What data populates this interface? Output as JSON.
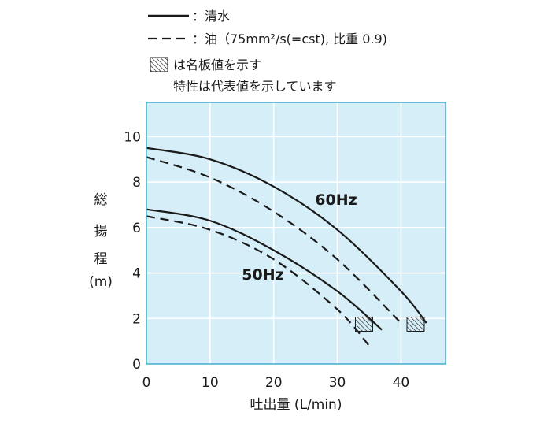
{
  "chart_data": {
    "type": "line",
    "xlabel": "吐出量 (L/min)",
    "ylabel": [
      "総",
      "揚",
      "程",
      "(m)"
    ],
    "xlim": [
      0,
      47
    ],
    "ylim": [
      0,
      11.5
    ],
    "x_ticks": [
      "0",
      "10",
      "20",
      "30",
      "40"
    ],
    "y_ticks": [
      "0",
      "2",
      "4",
      "6",
      "8",
      "10"
    ],
    "grid": true,
    "background_color": "#d6eef7",
    "frame_color": "#4db3cc",
    "grid_color": "#ffffff",
    "line_color": "#1a1a1a",
    "legend": {
      "solid": "：清水",
      "dashed": "：油（75mm²/s(=cst), 比重 0.9)",
      "hatch": "は名板値を示す",
      "note": "特性は代表値を示しています"
    },
    "series": [
      {
        "name": "60Hz",
        "style": "solid",
        "x": [
          0,
          10,
          20,
          30,
          40,
          44
        ],
        "y": [
          9.5,
          9.0,
          7.8,
          5.9,
          3.2,
          1.8
        ]
      },
      {
        "name": "60Hz",
        "style": "dashed",
        "x": [
          0,
          10,
          20,
          30,
          40
        ],
        "y": [
          9.1,
          8.2,
          6.7,
          4.6,
          1.8
        ]
      },
      {
        "name": "50Hz",
        "style": "solid",
        "x": [
          0,
          10,
          20,
          30,
          37
        ],
        "y": [
          6.8,
          6.3,
          5.0,
          3.2,
          1.5
        ]
      },
      {
        "name": "50Hz",
        "style": "dashed",
        "x": [
          0,
          10,
          20,
          30,
          35
        ],
        "y": [
          6.5,
          5.9,
          4.6,
          2.4,
          0.8
        ]
      }
    ],
    "curve_labels": [
      {
        "text": "60Hz",
        "x": 26.5,
        "y": 7.0
      },
      {
        "text": "50Hz",
        "x": 15.0,
        "y": 3.7
      }
    ],
    "rated_points": [
      {
        "label": "50Hz",
        "x": 34.2,
        "y": 1.75
      },
      {
        "label": "60Hz",
        "x": 42.3,
        "y": 1.75
      }
    ]
  }
}
